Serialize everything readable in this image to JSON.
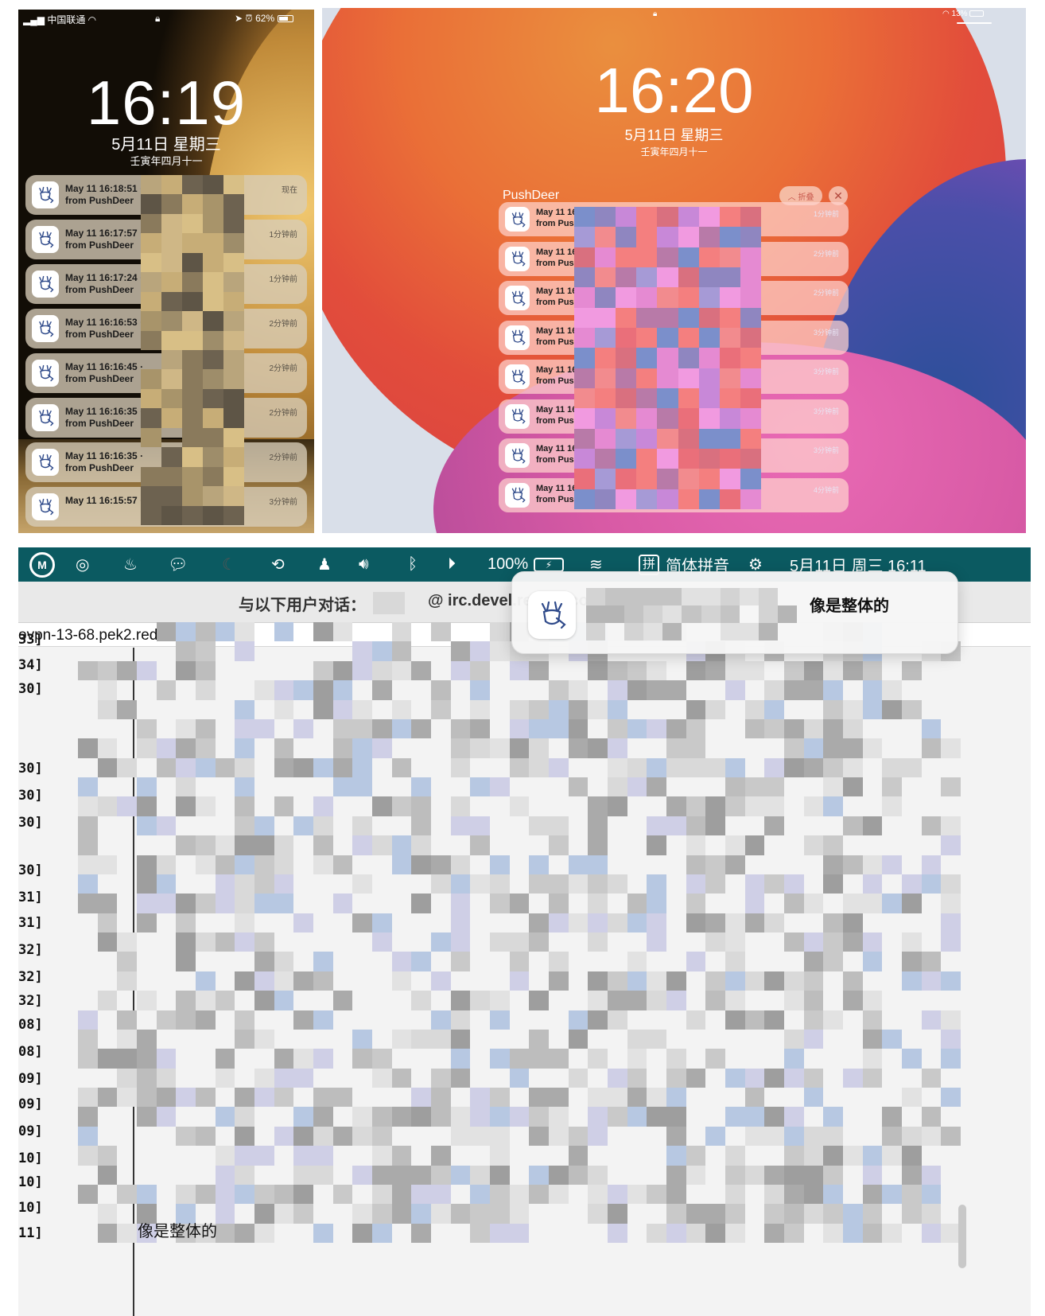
{
  "phone": {
    "carrier": "中国联通",
    "battery": "62%",
    "time": "16:19",
    "date": "5月11日 星期三",
    "lunar": "壬寅年四月十一",
    "notifications": [
      {
        "title": "May 11 16:18:51 ·",
        "body": "from PushDeer",
        "age": "现在"
      },
      {
        "title": "May 11 16:17:57 ·",
        "body": "from PushDeer",
        "age": "1分钟前"
      },
      {
        "title": "May 11 16:17:24 ·",
        "body": "from PushDeer",
        "age": "1分钟前"
      },
      {
        "title": "May 11 16:16:53 ·",
        "body": "from PushDeer",
        "age": "2分钟前"
      },
      {
        "title": "May 11 16:16:45 ·",
        "body": "from PushDeer",
        "age": "2分钟前"
      },
      {
        "title": "May 11 16:16:35 ·",
        "body": "from PushDeer",
        "age": "2分钟前"
      },
      {
        "title": "May 11 16:16:35 ·",
        "body": "from PushDeer",
        "age": "2分钟前"
      },
      {
        "title": "May 11 16:15:57 ·",
        "body": "",
        "age": "3分钟前"
      }
    ]
  },
  "tablet": {
    "battery": "13%",
    "time": "16:20",
    "date": "5月11日 星期三",
    "lunar": "壬寅年四月十一",
    "group_title": "PushDeer",
    "fold_label": "折叠",
    "notifications": [
      {
        "title": "May 11 16:18:51 ·",
        "body": "from PushDeer",
        "age": "1分钟前"
      },
      {
        "title": "May 11 16:17:57 ·",
        "body": "from PushDeer",
        "age": "2分钟前"
      },
      {
        "title": "May 11 16:17:24 ·",
        "body": "from PushDeer",
        "age": "2分钟前"
      },
      {
        "title": "May 11 16:16:53",
        "body": "from PushDeer",
        "age": "3分钟前"
      },
      {
        "title": "May 11 16:16:45",
        "body": "from PushDeer",
        "age": "3分钟前"
      },
      {
        "title": "May 11 16:16:35",
        "body": "from PushDeer",
        "age": "3分钟前"
      },
      {
        "title": "May 11 16:16:35",
        "body": "from PushDeer",
        "age": "3分钟前"
      },
      {
        "title": "May 11 16:15:57 ·",
        "body": "from PushDeer",
        "age": "4分钟前"
      }
    ]
  },
  "mac": {
    "battery": "100%",
    "input_method": "简体拼音",
    "input_badge": "拼",
    "clock": "5月11日 周三  16:11",
    "conversation_label": "与以下用户对话：",
    "conversation_host": "@ irc.devel.redhat.com",
    "host_line": "ovpn-13-68.pek2.redhat.com",
    "notification_text": "像是整体的",
    "last_message": "像是整体的",
    "timestamps": [
      "33]",
      "34]",
      "30]",
      "30]",
      "30]",
      "30]",
      "30]",
      "31]",
      "31]",
      "32]",
      "32]",
      "32]",
      "08]",
      "08]",
      "09]",
      "09]",
      "09]",
      "10]",
      "10]",
      "10]",
      "11]"
    ]
  },
  "colors": {
    "menubar": "#0b5a61",
    "tablet_orange": "#ea6f37",
    "tablet_blue": "#2d4f9a",
    "tablet_pink": "#e96ab4",
    "phone_gold": "#c08a39"
  },
  "icons": [
    "signal-icon",
    "wifi-icon",
    "lock-icon",
    "location-icon",
    "alarm-icon",
    "battery-icon",
    "pushdeer-app-icon",
    "fold-chevron-icon",
    "close-icon",
    "bluetooth-icon",
    "volume-icon",
    "moon-icon",
    "qq-icon",
    "wechat-icon",
    "control-center-icon"
  ]
}
